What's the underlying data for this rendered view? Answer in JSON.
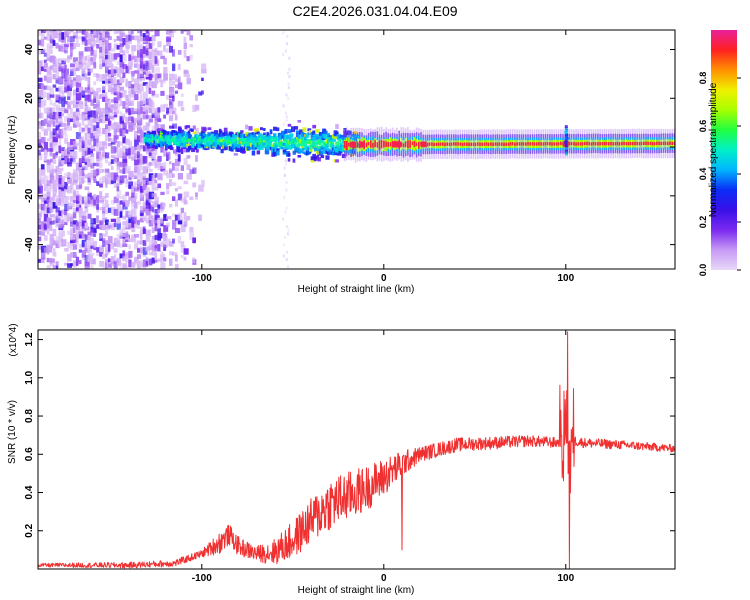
{
  "figure": {
    "title": "C2E4.2026.031.04.04.E09"
  },
  "chart_data": [
    {
      "type": "heatmap",
      "xlabel": "Height of straight line (km)",
      "ylabel": "Frequency (Hz)",
      "xlim": [
        -190,
        160
      ],
      "ylim": [
        -50,
        48
      ],
      "x_ticks": [
        -100,
        0,
        100
      ],
      "x_tick_labels": [
        "-100",
        "0",
        "100"
      ],
      "y_ticks": [
        -40,
        -20,
        0,
        20,
        40
      ],
      "y_tick_labels": [
        "-40",
        "-20",
        "0",
        "20",
        "40"
      ],
      "colorbar": {
        "label": "Normalized spectral amplitude",
        "range": [
          0,
          1
        ],
        "ticks": [
          0.0,
          0.2,
          0.4,
          0.6,
          0.8
        ],
        "tick_labels": [
          "0.0",
          "0.2",
          "0.4",
          "0.6",
          "0.8"
        ],
        "colors": [
          "#e8d8f8",
          "#c79af5",
          "#7a2af0",
          "#3a10e8",
          "#0a2cf5",
          "#00b4ff",
          "#00f0c8",
          "#20ff40",
          "#a8ff00",
          "#f0f000",
          "#ff9000",
          "#ff2020",
          "#e8209a"
        ]
      },
      "band": {
        "center_hz": [
          {
            "x": -130,
            "y": 3
          },
          {
            "x": -20,
            "y": 1
          },
          {
            "x": 160,
            "y": 1.5
          }
        ]
      },
      "grid": false
    },
    {
      "type": "line",
      "xlabel": "Height of straight line (km)",
      "ylabel": "SNR (10 * v/v)",
      "y_multiplier": "(x10^4)",
      "xlim": [
        -190,
        160
      ],
      "ylim": [
        0,
        1.25
      ],
      "x_ticks": [
        -100,
        0,
        100
      ],
      "x_tick_labels": [
        "-100",
        "0",
        "100"
      ],
      "y_ticks": [
        0.2,
        0.4,
        0.6,
        0.8,
        1.0,
        1.2
      ],
      "y_tick_labels": [
        "0.2",
        "0.4",
        "0.6",
        "0.8",
        "1.0",
        "1.2"
      ],
      "series": [
        {
          "color": "#f03030",
          "envelope": [
            {
              "x": -190,
              "y": 0.02
            },
            {
              "x": -140,
              "y": 0.02
            },
            {
              "x": -115,
              "y": 0.03
            },
            {
              "x": -100,
              "y": 0.08
            },
            {
              "x": -90,
              "y": 0.14
            },
            {
              "x": -85,
              "y": 0.18
            },
            {
              "x": -80,
              "y": 0.12
            },
            {
              "x": -70,
              "y": 0.08
            },
            {
              "x": -60,
              "y": 0.09
            },
            {
              "x": -50,
              "y": 0.15
            },
            {
              "x": -40,
              "y": 0.25
            },
            {
              "x": -30,
              "y": 0.34
            },
            {
              "x": -20,
              "y": 0.38
            },
            {
              "x": -10,
              "y": 0.42
            },
            {
              "x": 0,
              "y": 0.48
            },
            {
              "x": 10,
              "y": 0.55
            },
            {
              "x": 20,
              "y": 0.6
            },
            {
              "x": 40,
              "y": 0.65
            },
            {
              "x": 60,
              "y": 0.66
            },
            {
              "x": 80,
              "y": 0.67
            },
            {
              "x": 95,
              "y": 0.66
            },
            {
              "x": 100,
              "y": 0.68
            },
            {
              "x": 110,
              "y": 0.66
            },
            {
              "x": 130,
              "y": 0.65
            },
            {
              "x": 160,
              "y": 0.63
            }
          ],
          "noise_amplitude": [
            {
              "x": -190,
              "y": 0.01
            },
            {
              "x": -100,
              "y": 0.02
            },
            {
              "x": -90,
              "y": 0.06
            },
            {
              "x": -70,
              "y": 0.04
            },
            {
              "x": -50,
              "y": 0.1
            },
            {
              "x": -30,
              "y": 0.14
            },
            {
              "x": -10,
              "y": 0.12
            },
            {
              "x": 0,
              "y": 0.1
            },
            {
              "x": 20,
              "y": 0.04
            },
            {
              "x": 80,
              "y": 0.03
            },
            {
              "x": 160,
              "y": 0.02
            }
          ],
          "features": [
            {
              "x": 10,
              "min": 0.1
            },
            {
              "x": 101,
              "max": 1.24
            },
            {
              "x": 102,
              "min": 0.0
            },
            {
              "x": 99,
              "max": 0.93
            }
          ]
        }
      ],
      "grid": false
    }
  ]
}
